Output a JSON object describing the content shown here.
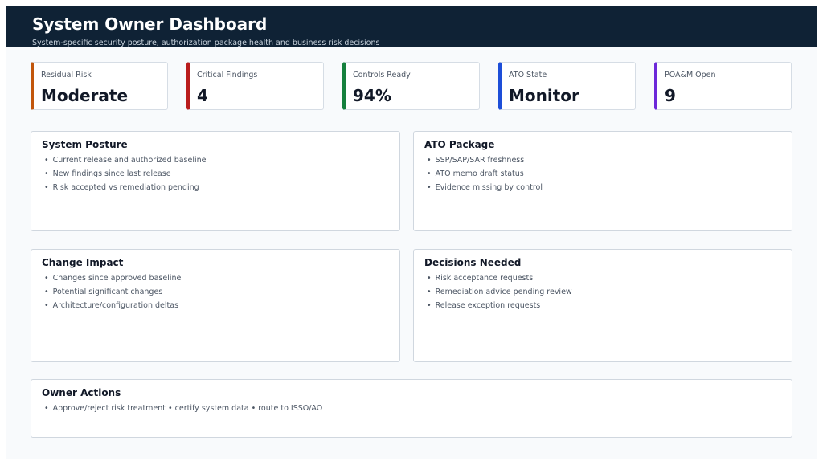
{
  "header": {
    "title": "System Owner Dashboard",
    "subtitle": "System-specific security posture, authorization package health and business risk decisions"
  },
  "kpis": [
    {
      "label": "Residual Risk",
      "value": "Moderate",
      "accent": "#c2560c"
    },
    {
      "label": "Critical Findings",
      "value": "4",
      "accent": "#b91c1c"
    },
    {
      "label": "Controls Ready",
      "value": "94%",
      "accent": "#15803d"
    },
    {
      "label": "ATO State",
      "value": "Monitor",
      "accent": "#1d4ed8"
    },
    {
      "label": "POA&M Open",
      "value": "9",
      "accent": "#6d28d9"
    }
  ],
  "panels": {
    "system_posture": {
      "title": "System Posture",
      "items": [
        "Current release and authorized baseline",
        "New findings since last release",
        "Risk accepted vs remediation pending"
      ]
    },
    "ato_package": {
      "title": "ATO Package",
      "items": [
        "SSP/SAP/SAR freshness",
        "ATO memo draft status",
        "Evidence missing by control"
      ]
    },
    "change_impact": {
      "title": "Change Impact",
      "items": [
        "Changes since approved baseline",
        "Potential significant changes",
        "Architecture/configuration deltas"
      ]
    },
    "decisions_needed": {
      "title": "Decisions Needed",
      "items": [
        "Risk acceptance requests",
        "Remediation advice pending review",
        "Release exception requests"
      ]
    },
    "owner_actions": {
      "title": "Owner Actions",
      "items": [
        "Approve/reject risk treatment • certify system data • route to ISSO/AO"
      ]
    }
  }
}
